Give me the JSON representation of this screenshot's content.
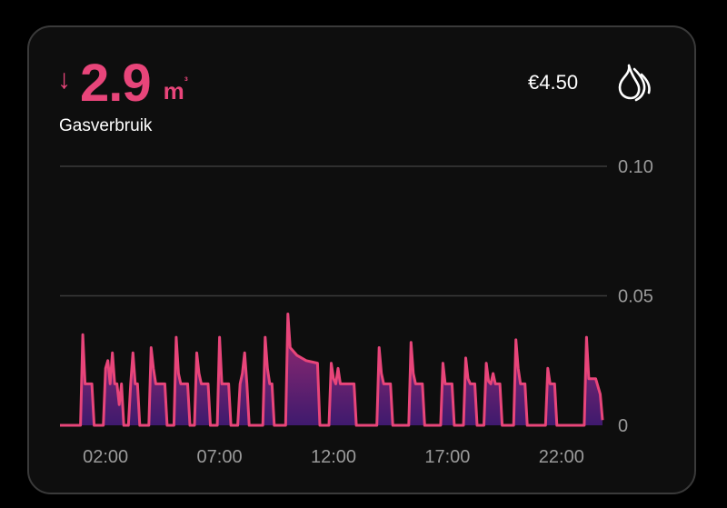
{
  "header": {
    "arrow_icon": "arrow-down-icon",
    "value": "2.9",
    "unit": "m",
    "unit_sup": "³",
    "label": "Gasverbruik",
    "cost": "€4.50",
    "flame_icon": "gas-flame-icon"
  },
  "colors": {
    "accent": "#e8457a",
    "fill_bottom": "#3f1a6e",
    "grid": "#3a3a3a",
    "tick": "#9a9a9a",
    "background": "#0e0e0e"
  },
  "chart_data": {
    "type": "area",
    "y_ticks": [
      "0.10",
      "0.05",
      "0"
    ],
    "ylim": [
      0,
      0.1
    ],
    "x_ticks": [
      "02:00",
      "07:00",
      "12:00",
      "17:00",
      "22:00"
    ],
    "xlim": [
      0,
      24
    ],
    "grid": true,
    "series": [
      {
        "points": [
          [
            0,
            0
          ],
          [
            0.9,
            0
          ],
          [
            1.0,
            0.035
          ],
          [
            1.1,
            0.016
          ],
          [
            1.4,
            0.016
          ],
          [
            1.5,
            0
          ],
          [
            1.9,
            0
          ],
          [
            2.0,
            0.022
          ],
          [
            2.1,
            0.025
          ],
          [
            2.2,
            0.016
          ],
          [
            2.3,
            0.028
          ],
          [
            2.4,
            0.016
          ],
          [
            2.5,
            0.016
          ],
          [
            2.6,
            0.008
          ],
          [
            2.7,
            0.016
          ],
          [
            2.8,
            0
          ],
          [
            3.0,
            0
          ],
          [
            3.1,
            0.016
          ],
          [
            3.2,
            0.028
          ],
          [
            3.3,
            0.016
          ],
          [
            3.4,
            0.016
          ],
          [
            3.5,
            0
          ],
          [
            3.9,
            0
          ],
          [
            4.0,
            0.03
          ],
          [
            4.1,
            0.022
          ],
          [
            4.2,
            0.016
          ],
          [
            4.6,
            0.016
          ],
          [
            4.7,
            0
          ],
          [
            5.0,
            0
          ],
          [
            5.1,
            0.034
          ],
          [
            5.2,
            0.02
          ],
          [
            5.3,
            0.016
          ],
          [
            5.6,
            0.016
          ],
          [
            5.7,
            0
          ],
          [
            5.9,
            0
          ],
          [
            6.0,
            0.028
          ],
          [
            6.1,
            0.02
          ],
          [
            6.2,
            0.016
          ],
          [
            6.5,
            0.016
          ],
          [
            6.6,
            0
          ],
          [
            6.9,
            0
          ],
          [
            7.0,
            0.034
          ],
          [
            7.1,
            0.016
          ],
          [
            7.4,
            0.016
          ],
          [
            7.5,
            0
          ],
          [
            7.8,
            0
          ],
          [
            7.9,
            0.016
          ],
          [
            8.0,
            0.02
          ],
          [
            8.1,
            0.028
          ],
          [
            8.2,
            0.016
          ],
          [
            8.3,
            0
          ],
          [
            8.9,
            0
          ],
          [
            9.0,
            0.034
          ],
          [
            9.1,
            0.022
          ],
          [
            9.2,
            0.016
          ],
          [
            9.3,
            0.016
          ],
          [
            9.4,
            0
          ],
          [
            9.9,
            0
          ],
          [
            10.0,
            0.043
          ],
          [
            10.1,
            0.03
          ],
          [
            10.4,
            0.027
          ],
          [
            10.8,
            0.025
          ],
          [
            11.3,
            0.024
          ],
          [
            11.4,
            0
          ],
          [
            11.8,
            0
          ],
          [
            11.9,
            0.024
          ],
          [
            12.0,
            0.018
          ],
          [
            12.1,
            0.016
          ],
          [
            12.2,
            0.022
          ],
          [
            12.3,
            0.016
          ],
          [
            12.9,
            0.016
          ],
          [
            13.0,
            0
          ],
          [
            13.9,
            0
          ],
          [
            14.0,
            0.03
          ],
          [
            14.1,
            0.02
          ],
          [
            14.2,
            0.016
          ],
          [
            14.5,
            0.016
          ],
          [
            14.6,
            0
          ],
          [
            15.3,
            0
          ],
          [
            15.4,
            0.032
          ],
          [
            15.5,
            0.02
          ],
          [
            15.6,
            0.016
          ],
          [
            15.9,
            0.016
          ],
          [
            16.0,
            0
          ],
          [
            16.7,
            0
          ],
          [
            16.8,
            0.024
          ],
          [
            16.9,
            0.016
          ],
          [
            17.2,
            0.016
          ],
          [
            17.3,
            0
          ],
          [
            17.7,
            0
          ],
          [
            17.8,
            0.026
          ],
          [
            17.9,
            0.018
          ],
          [
            18.0,
            0.016
          ],
          [
            18.2,
            0.016
          ],
          [
            18.3,
            0
          ],
          [
            18.6,
            0
          ],
          [
            18.7,
            0.024
          ],
          [
            18.8,
            0.017
          ],
          [
            18.9,
            0.016
          ],
          [
            19.0,
            0.02
          ],
          [
            19.1,
            0.016
          ],
          [
            19.3,
            0.016
          ],
          [
            19.4,
            0
          ],
          [
            19.9,
            0
          ],
          [
            20.0,
            0.033
          ],
          [
            20.1,
            0.022
          ],
          [
            20.2,
            0.016
          ],
          [
            20.4,
            0.016
          ],
          [
            20.5,
            0
          ],
          [
            21.3,
            0
          ],
          [
            21.4,
            0.022
          ],
          [
            21.5,
            0.016
          ],
          [
            21.7,
            0.016
          ],
          [
            21.8,
            0
          ],
          [
            23.0,
            0
          ],
          [
            23.1,
            0.034
          ],
          [
            23.2,
            0.018
          ],
          [
            23.5,
            0.018
          ],
          [
            23.7,
            0.012
          ],
          [
            23.8,
            0.002
          ]
        ]
      }
    ]
  }
}
